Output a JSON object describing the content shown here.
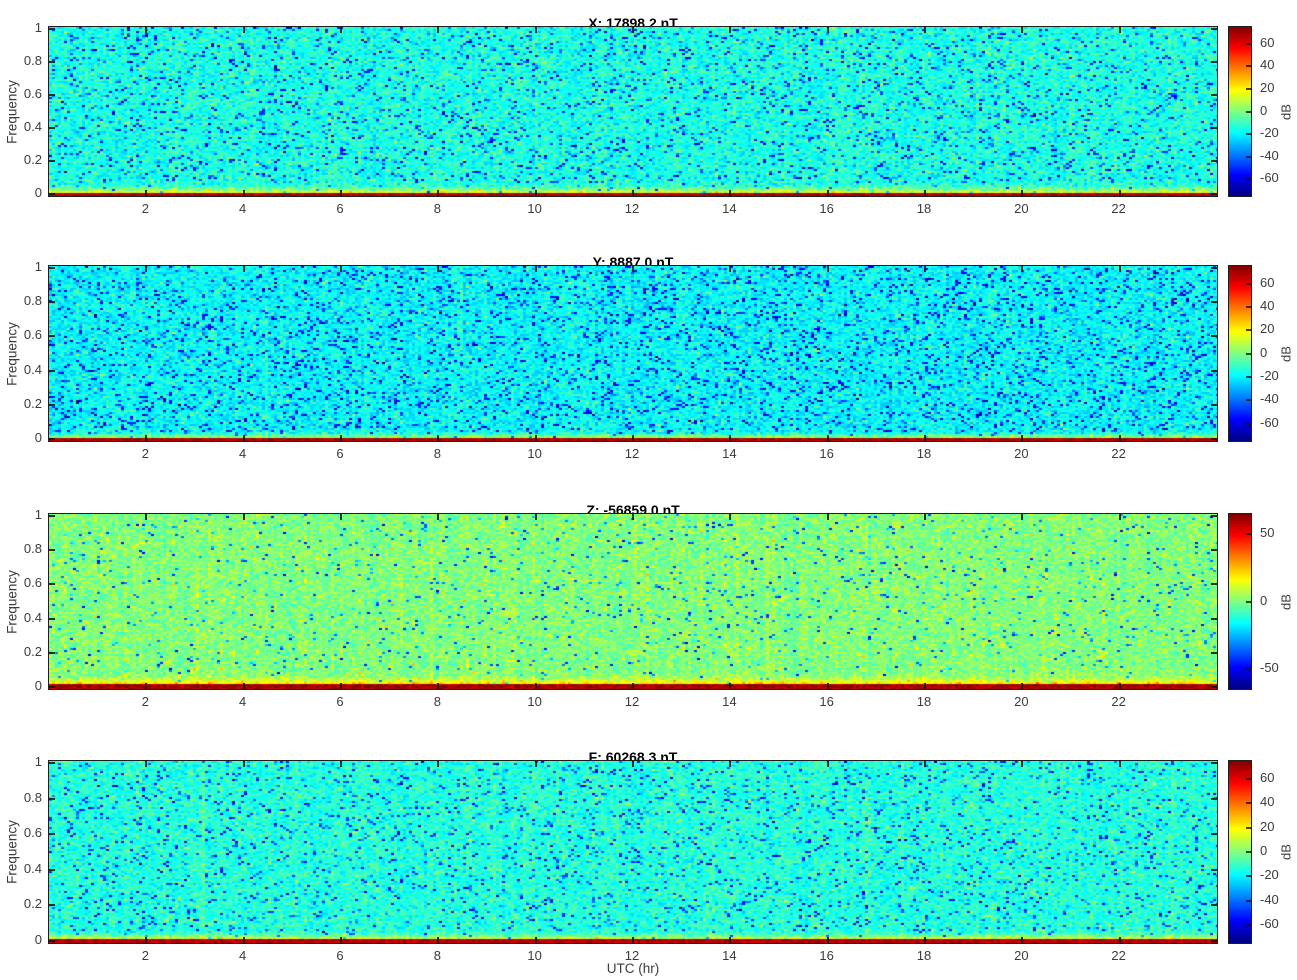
{
  "figure": {
    "xlabel": "UTC (hr)",
    "background_color": "#ffffff",
    "axis_color": "#1f1f1f",
    "tick_label_color": "#3c3c3c"
  },
  "chart_data": [
    {
      "type": "heatmap",
      "title": "X: 17898.2 nT",
      "ylabel": "Frequency",
      "colormap": "jet",
      "xlim": [
        0,
        24
      ],
      "ylim": [
        0,
        1
      ],
      "xticks": [
        2,
        4,
        6,
        8,
        10,
        12,
        14,
        16,
        18,
        20,
        22
      ],
      "yticks": [
        0,
        0.2,
        0.4,
        0.6,
        0.8,
        1
      ],
      "colorbar": {
        "label": "dB",
        "clim": [
          -75,
          75
        ],
        "ticks": [
          60,
          40,
          20,
          0,
          -20,
          -40,
          -60
        ]
      },
      "spectral_summary": {
        "background_db": -15,
        "noise_spread_db": 14,
        "deep_blue_speckle_fraction": 0.08,
        "low_freq_band": {
          "extent_freq": 0.075,
          "peak_db": 34
        },
        "baseline_db": 68,
        "baseline_rows": 2
      },
      "seed": 101
    },
    {
      "type": "heatmap",
      "title": "Y: 8887.0 nT",
      "ylabel": "Frequency",
      "colormap": "jet",
      "xlim": [
        0,
        24
      ],
      "ylim": [
        0,
        1
      ],
      "xticks": [
        2,
        4,
        6,
        8,
        10,
        12,
        14,
        16,
        18,
        20,
        22
      ],
      "yticks": [
        0,
        0.2,
        0.4,
        0.6,
        0.8,
        1
      ],
      "colorbar": {
        "label": "dB",
        "clim": [
          -75,
          75
        ],
        "ticks": [
          60,
          40,
          20,
          0,
          -20,
          -40,
          -60
        ]
      },
      "spectral_summary": {
        "background_db": -19,
        "noise_spread_db": 13,
        "deep_blue_speckle_fraction": 0.11,
        "low_freq_band": {
          "extent_freq": 0.055,
          "peak_db": 30
        },
        "baseline_db": 68,
        "baseline_rows": 2
      },
      "seed": 202
    },
    {
      "type": "heatmap",
      "title": "Z: -56859.0 nT",
      "ylabel": "Frequency",
      "colormap": "jet",
      "xlim": [
        0,
        24
      ],
      "ylim": [
        0,
        1
      ],
      "xticks": [
        2,
        4,
        6,
        8,
        10,
        12,
        14,
        16,
        18,
        20,
        22
      ],
      "yticks": [
        0,
        0.2,
        0.4,
        0.6,
        0.8,
        1
      ],
      "colorbar": {
        "label": "dB",
        "clim": [
          -65,
          65
        ],
        "ticks": [
          50,
          0,
          -50
        ]
      },
      "spectral_summary": {
        "background_db": 0,
        "noise_spread_db": 11,
        "deep_blue_speckle_fraction": 0.035,
        "low_freq_band": {
          "extent_freq": 0.085,
          "peak_db": 38
        },
        "baseline_db": 60,
        "baseline_rows": 3
      },
      "seed": 303
    },
    {
      "type": "heatmap",
      "title": "F: 60268.3 nT",
      "ylabel": "Frequency",
      "colormap": "jet",
      "xlim": [
        0,
        24
      ],
      "ylim": [
        0,
        1
      ],
      "xticks": [
        2,
        4,
        6,
        8,
        10,
        12,
        14,
        16,
        18,
        20,
        22
      ],
      "yticks": [
        0,
        0.2,
        0.4,
        0.6,
        0.8,
        1
      ],
      "colorbar": {
        "label": "dB",
        "clim": [
          -75,
          75
        ],
        "ticks": [
          60,
          40,
          20,
          0,
          -20,
          -40,
          -60
        ]
      },
      "spectral_summary": {
        "background_db": -14,
        "noise_spread_db": 13,
        "deep_blue_speckle_fraction": 0.07,
        "low_freq_band": {
          "extent_freq": 0.06,
          "peak_db": 32
        },
        "baseline_db": 67,
        "baseline_rows": 2
      },
      "seed": 404
    }
  ]
}
